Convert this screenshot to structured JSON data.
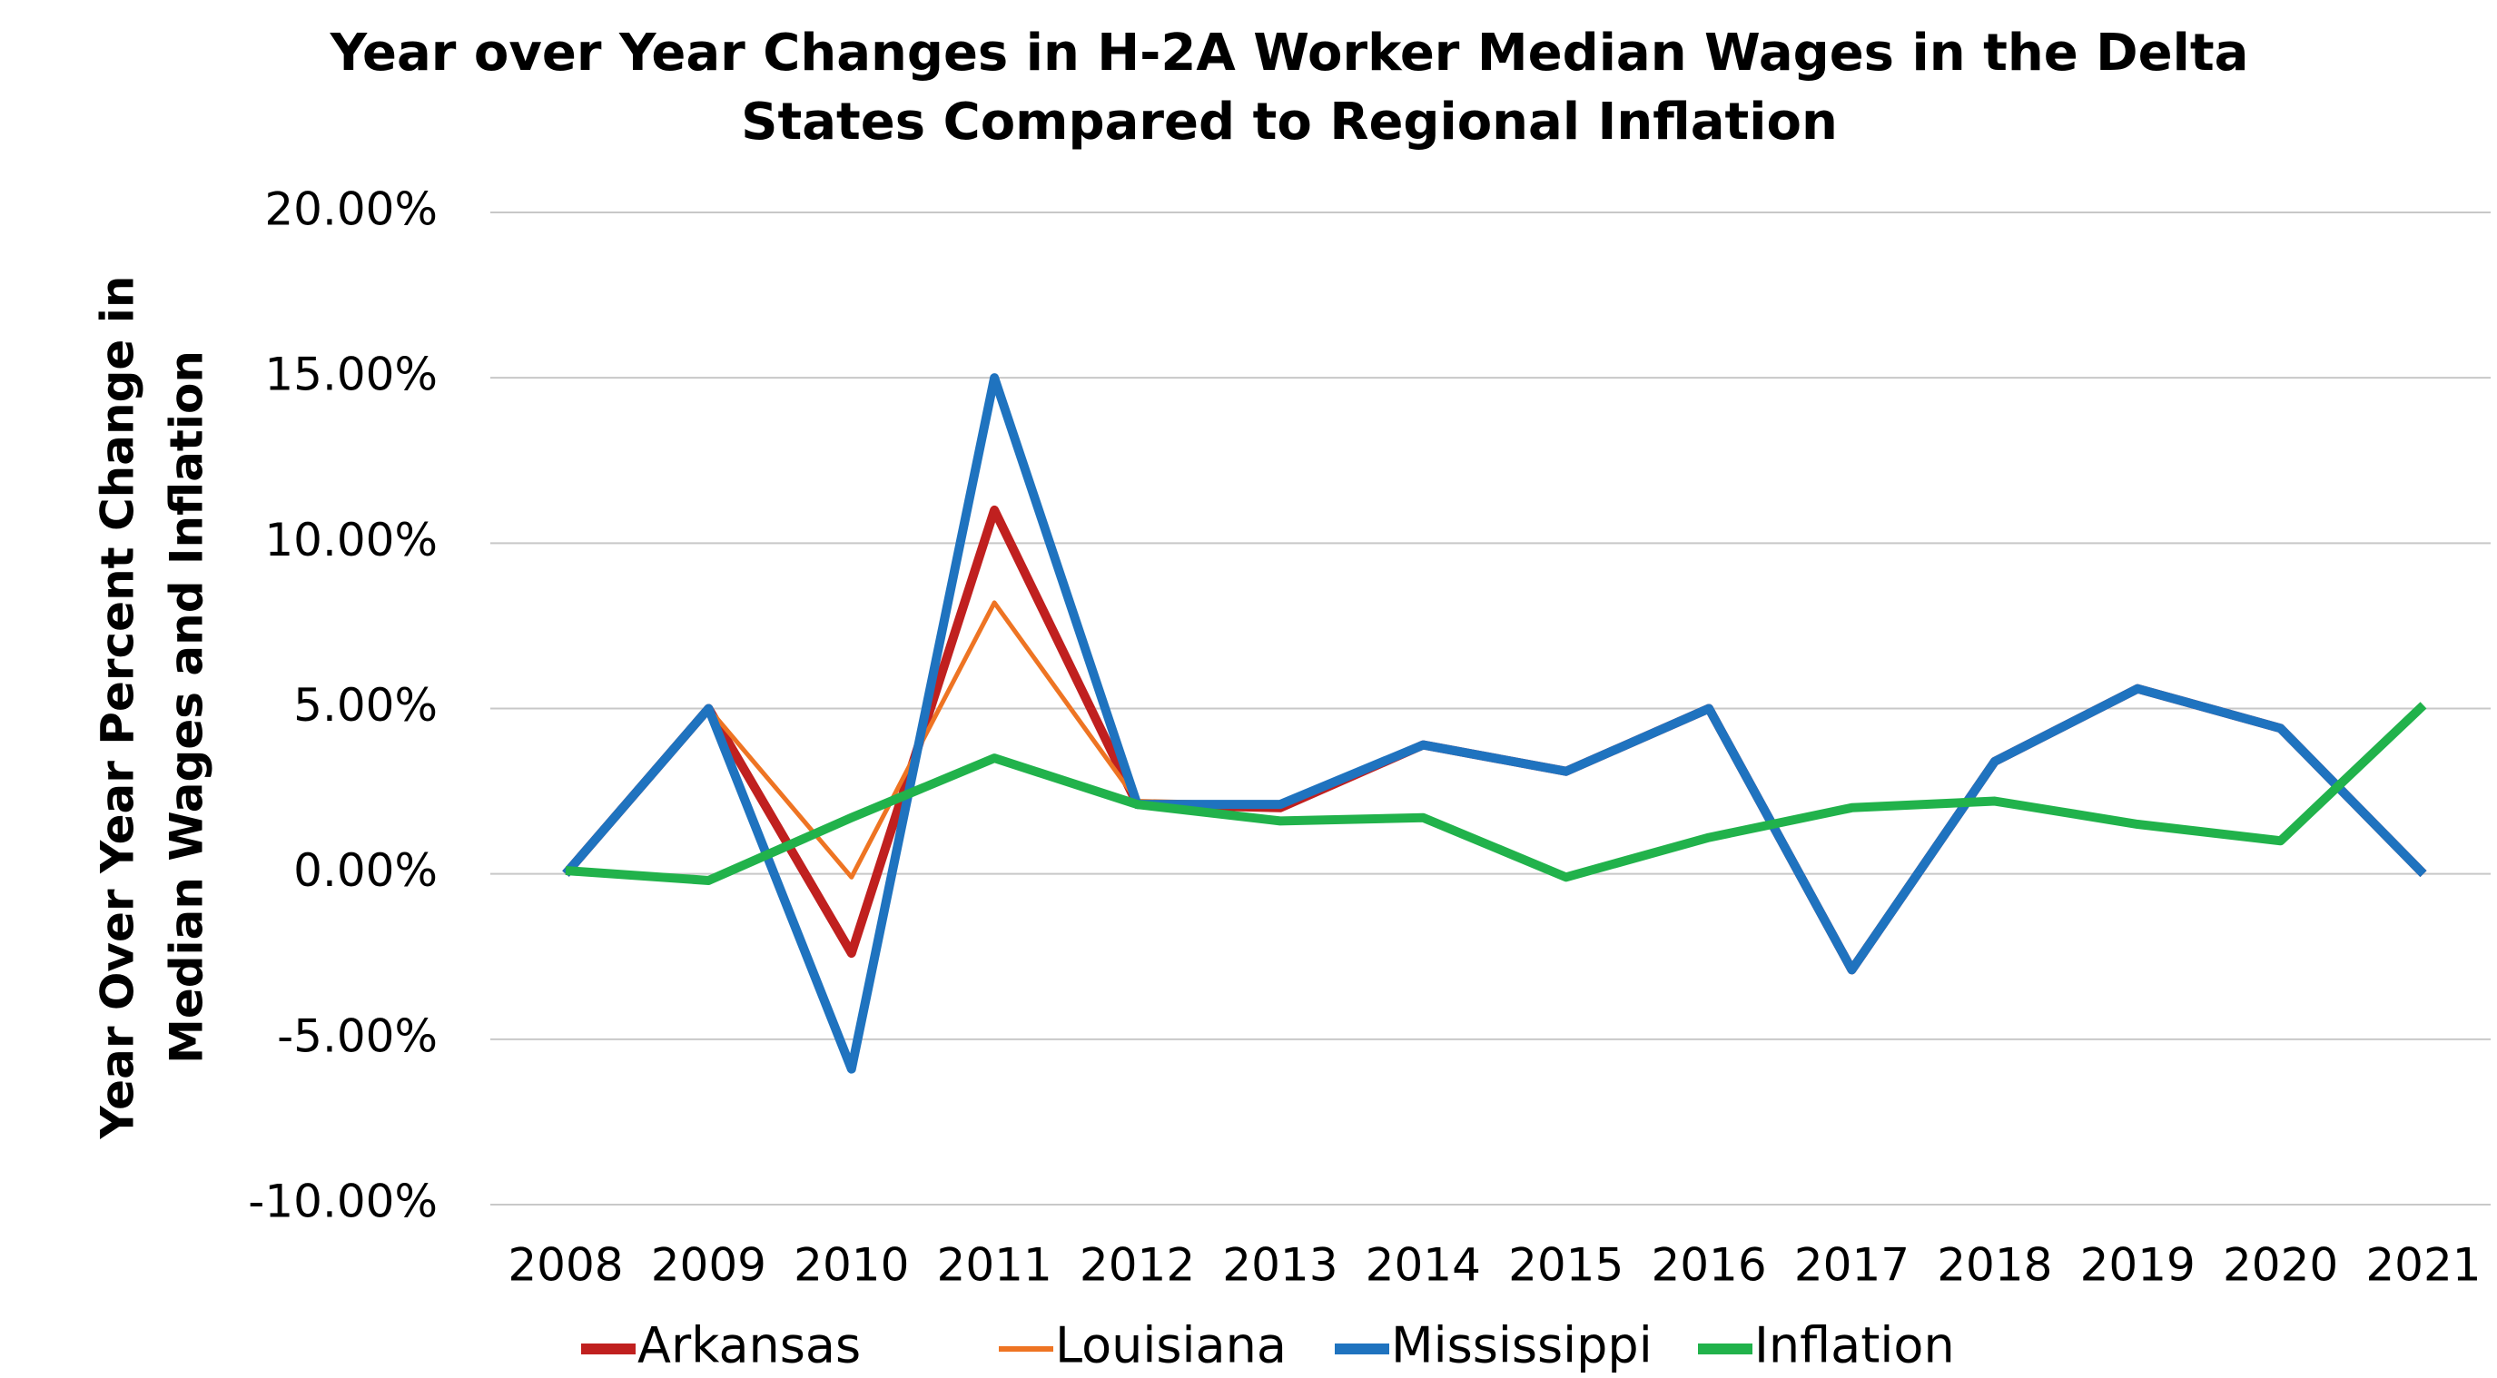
{
  "chart_data": {
    "type": "line",
    "title": [
      "Year over Year Changes in H-2A Worker Median Wages in the Delta",
      "States Compared to Regional Inflation"
    ],
    "ylabel": [
      "Year Over Year Percent Change in",
      "Median Wages and Inflation"
    ],
    "x": [
      "2008",
      "2009",
      "2010",
      "2011",
      "2012",
      "2013",
      "2014",
      "2015",
      "2016",
      "2017",
      "2018",
      "2019",
      "2020",
      "2021"
    ],
    "series": [
      {
        "name": "Arkansas",
        "color": "#c0201f",
        "values": [
          0,
          5.0,
          -2.4,
          11.0,
          2.1,
          2.0,
          3.9,
          3.1,
          5.0,
          -2.9,
          3.4,
          5.6,
          4.4,
          0
        ]
      },
      {
        "name": "Louisiana",
        "color": "#ee7423",
        "values": [
          0,
          5.0,
          -0.1,
          8.2,
          2.2,
          2.1,
          3.9,
          3.1,
          5.0,
          -2.9,
          3.4,
          5.6,
          4.4,
          0
        ]
      },
      {
        "name": "Mississippi",
        "color": "#1f73bf",
        "values": [
          0,
          5.0,
          -5.9,
          15.0,
          2.1,
          2.1,
          3.9,
          3.1,
          5.0,
          -2.9,
          3.4,
          5.6,
          4.4,
          0
        ]
      },
      {
        "name": "Inflation",
        "color": "#21b24b",
        "values": [
          0.1,
          -0.2,
          1.7,
          3.5,
          2.1,
          1.6,
          1.7,
          -0.1,
          1.1,
          2.0,
          2.2,
          1.5,
          1.0,
          5.1
        ]
      }
    ],
    "ylim": [
      -10,
      20
    ],
    "yticks": [
      {
        "value": -10,
        "label": "-10.00%"
      },
      {
        "value": -5,
        "label": "-5.00%"
      },
      {
        "value": 0,
        "label": "0.00%"
      },
      {
        "value": 5,
        "label": "5.00%"
      },
      {
        "value": 10,
        "label": "10.00%"
      },
      {
        "value": 15,
        "label": "15.00%"
      },
      {
        "value": 20,
        "label": "20.00%"
      }
    ],
    "grid": true,
    "legend": "bottom"
  }
}
